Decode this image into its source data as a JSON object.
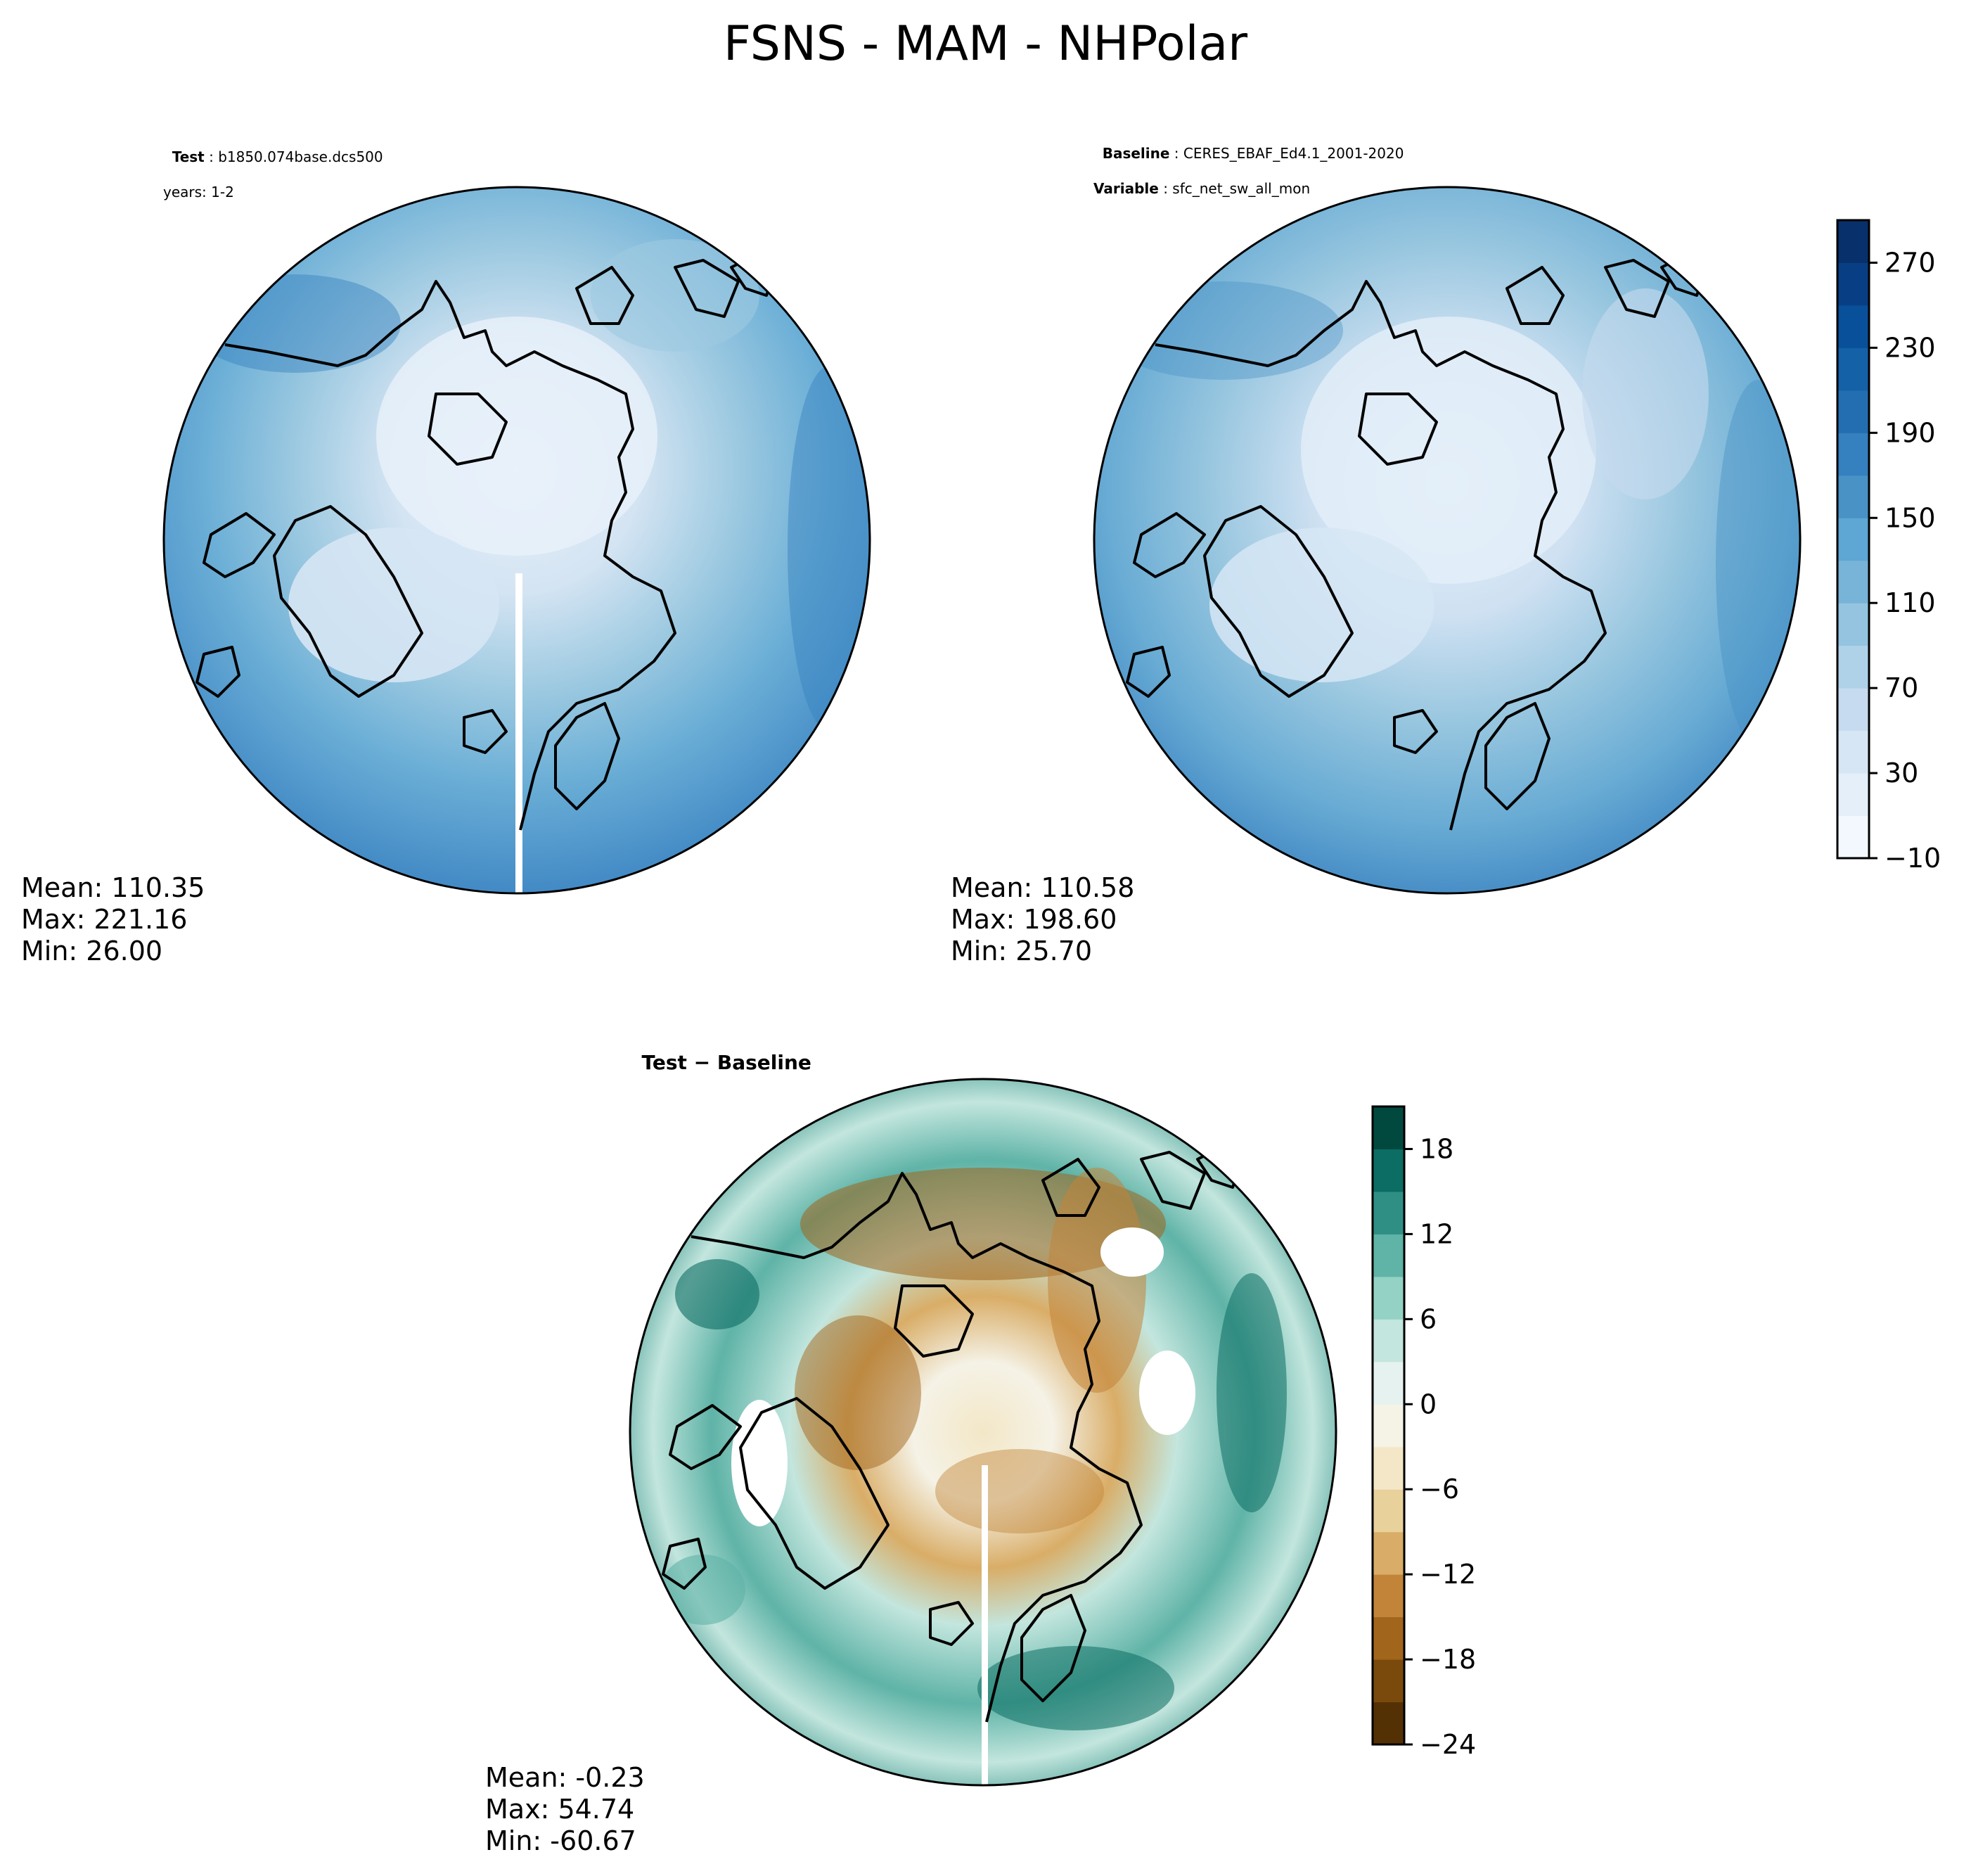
{
  "title": "FSNS - MAM - NHPolar",
  "panels": {
    "test": {
      "label_bold": "Test",
      "label_text": "b1850.074base.dcs500",
      "years": "years: 1-2",
      "mean": "Mean: 110.35",
      "max": "Max: 221.16",
      "min": "Min: 26.00"
    },
    "baseline": {
      "label_bold": "Baseline",
      "label_text": "CERES_EBAF_Ed4.1_2001-2020",
      "var_bold": "Variable",
      "var_text": "sfc_net_sw_all_mon",
      "mean": "Mean: 110.58",
      "max": "Max: 198.60",
      "min": "Min: 25.70"
    },
    "diff": {
      "label": "Test − Baseline",
      "mean": "Mean: -0.23",
      "max": "Max: 54.74",
      "min": "Min: -60.67"
    }
  },
  "colorbars": {
    "main": {
      "colormap": "Blues",
      "ticks": [
        "270",
        "230",
        "190",
        "150",
        "110",
        "70",
        "30",
        "−10"
      ],
      "levels": [
        -10,
        10,
        30,
        50,
        70,
        90,
        110,
        130,
        150,
        170,
        190,
        210,
        230,
        250,
        270,
        290
      ],
      "colors": [
        "#f3f8fe",
        "#e4eff9",
        "#d6e6f4",
        "#c6dbef",
        "#b0d2e8",
        "#94c4df",
        "#78b3d8",
        "#5ea6d3",
        "#4892c6",
        "#3580be",
        "#236eb1",
        "#1461a8",
        "#09509a",
        "#083f84",
        "#08306b"
      ]
    },
    "diff": {
      "colormap": "BrBG",
      "ticks": [
        "18",
        "12",
        "6",
        "0",
        "−6",
        "−12",
        "−18",
        "−24"
      ],
      "levels": [
        -24,
        -21,
        -18,
        -15,
        -12,
        -9,
        -6,
        -3,
        0,
        3,
        6,
        9,
        12,
        15,
        18,
        21
      ],
      "colors": [
        "#543005",
        "#7a4a0d",
        "#a1651b",
        "#c28438",
        "#d9ad67",
        "#e9d19c",
        "#f3e7c7",
        "#f5f2e6",
        "#e6f2f0",
        "#c3e6de",
        "#93d2c4",
        "#5fb3a7",
        "#2f8f85",
        "#0b6d63",
        "#01493f"
      ]
    }
  }
}
